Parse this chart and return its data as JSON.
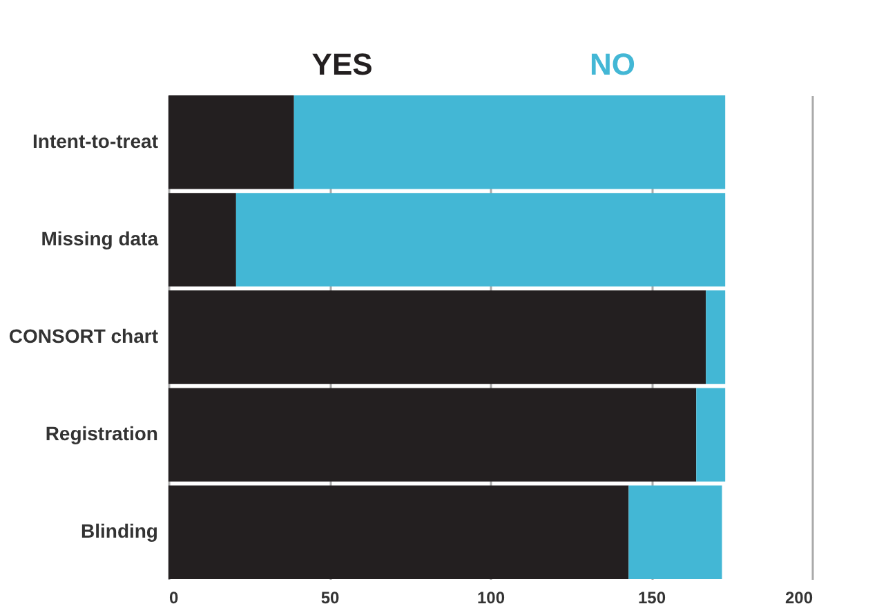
{
  "chart_data": {
    "type": "bar",
    "orientation": "horizontal",
    "stacked": true,
    "categories": [
      "Intent-to-treat",
      "Missing data",
      "CONSORT chart",
      "Registration",
      "Blinding"
    ],
    "series": [
      {
        "name": "YES",
        "color": "#231f20",
        "values": [
          39,
          21,
          167,
          164,
          143
        ]
      },
      {
        "name": "NO",
        "color": "#43b7d5",
        "values": [
          134,
          152,
          6,
          9,
          29
        ]
      }
    ],
    "xlim": [
      0,
      200
    ],
    "xticks": [
      0,
      50,
      100,
      150,
      200
    ],
    "grid": "x",
    "legend": "top"
  }
}
